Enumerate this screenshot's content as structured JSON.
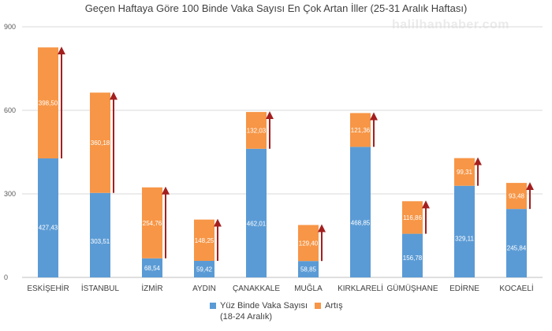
{
  "chart_data": {
    "type": "bar",
    "stacked": true,
    "title": "Geçen Haftaya Göre 100 Binde Vaka Sayısı En Çok Artan İller (25-31 Aralık Haftası)",
    "watermark": "halilhanhaber.com",
    "categories": [
      "ESKİŞEHİR",
      "İSTANBUL",
      "İZMİR",
      "AYDIN",
      "ÇANAKKALE",
      "MUĞLA",
      "KIRKLARELİ",
      "GÜMÜŞHANE",
      "EDİRNE",
      "KOCAELİ"
    ],
    "series": [
      {
        "name": "Yüz Binde Vaka Sayısı",
        "name_line2": "(18-24 Aralık)",
        "color": "#5b9bd5",
        "values": [
          427.43,
          303.51,
          68.54,
          59.42,
          462.01,
          58.85,
          468.85,
          156.78,
          329.11,
          245.84
        ],
        "labels": [
          "427,43",
          "303,51",
          "68,54",
          "59,42",
          "462,01",
          "58,85",
          "468,85",
          "156,78",
          "329,11",
          "245,84"
        ]
      },
      {
        "name": "Artış",
        "color": "#f79646",
        "values": [
          398.5,
          360.18,
          254.76,
          148.25,
          132.03,
          129.4,
          121.36,
          116.86,
          99.31,
          93.48
        ],
        "labels": [
          "398,50",
          "360,18",
          "254,76",
          "148,25",
          "132,03",
          "129,40",
          "121,36",
          "116,86",
          "99,31",
          "93,48"
        ]
      }
    ],
    "ylim": [
      0,
      900
    ],
    "yticks": [
      0,
      300,
      600,
      900
    ],
    "grid": true,
    "arrow_color": "#a31f1f",
    "legend_position": "bottom"
  }
}
